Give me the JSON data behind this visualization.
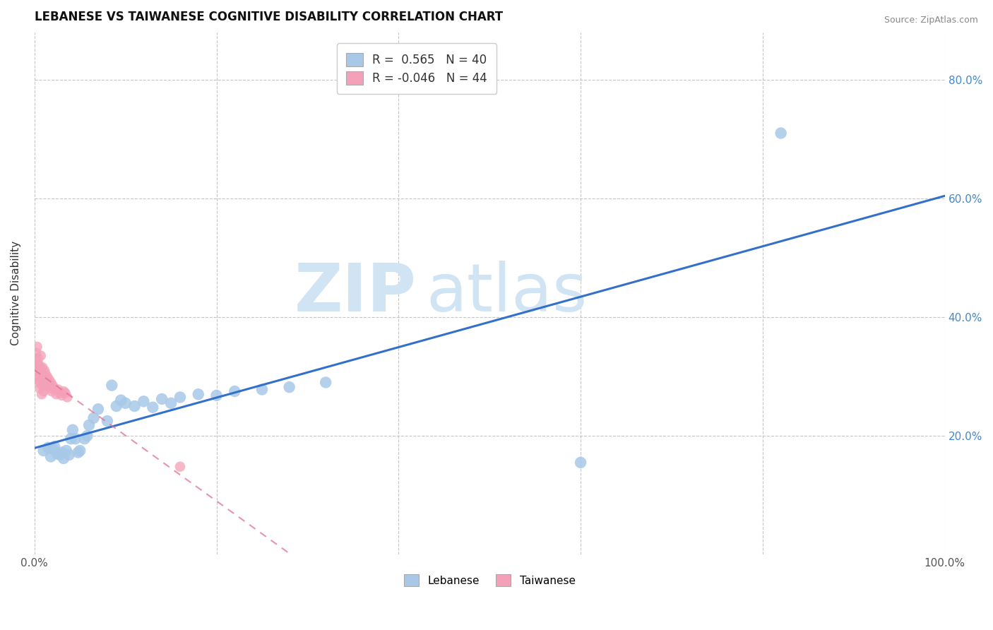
{
  "title": "LEBANESE VS TAIWANESE COGNITIVE DISABILITY CORRELATION CHART",
  "source": "Source: ZipAtlas.com",
  "ylabel": "Cognitive Disability",
  "xlim": [
    0.0,
    1.0
  ],
  "ylim": [
    0.0,
    0.88
  ],
  "xticks": [
    0.0,
    0.2,
    0.4,
    0.6,
    0.8,
    1.0
  ],
  "yticks": [
    0.2,
    0.4,
    0.6,
    0.8
  ],
  "xticklabels": [
    "0.0%",
    "",
    "",
    "",
    "",
    "100.0%"
  ],
  "yticklabels_right": [
    "20.0%",
    "40.0%",
    "60.0%",
    "80.0%"
  ],
  "legend_label_blue": "R =  0.565   N = 40",
  "legend_label_pink": "R = -0.046   N = 44",
  "blue_scatter_color": "#a8c8e8",
  "pink_scatter_color": "#f4a0b8",
  "blue_line_color": "#3370cc",
  "pink_line_color": "#e07090",
  "watermark_zip": "ZIP",
  "watermark_atlas": "atlas",
  "watermark_color": "#d0e4f4",
  "background_color": "#ffffff",
  "grid_color": "#c0c0c0",
  "title_fontsize": 12,
  "axis_label_fontsize": 11,
  "tick_fontsize": 11,
  "legend_fontsize": 12,
  "lebanese_x": [
    0.01,
    0.015,
    0.018,
    0.02,
    0.022,
    0.025,
    0.028,
    0.03,
    0.032,
    0.035,
    0.038,
    0.04,
    0.042,
    0.045,
    0.048,
    0.05,
    0.055,
    0.058,
    0.06,
    0.065,
    0.07,
    0.08,
    0.085,
    0.09,
    0.095,
    0.1,
    0.11,
    0.12,
    0.13,
    0.14,
    0.15,
    0.16,
    0.18,
    0.2,
    0.22,
    0.25,
    0.28,
    0.32,
    0.6,
    0.82
  ],
  "lebanese_y": [
    0.175,
    0.18,
    0.165,
    0.178,
    0.182,
    0.17,
    0.168,
    0.172,
    0.162,
    0.175,
    0.168,
    0.195,
    0.21,
    0.195,
    0.172,
    0.175,
    0.195,
    0.2,
    0.218,
    0.23,
    0.245,
    0.225,
    0.285,
    0.25,
    0.26,
    0.255,
    0.25,
    0.258,
    0.248,
    0.262,
    0.255,
    0.265,
    0.27,
    0.268,
    0.275,
    0.278,
    0.282,
    0.29,
    0.155,
    0.71
  ],
  "taiwanese_x": [
    0.001,
    0.002,
    0.002,
    0.003,
    0.003,
    0.004,
    0.004,
    0.004,
    0.005,
    0.005,
    0.005,
    0.006,
    0.006,
    0.007,
    0.007,
    0.007,
    0.008,
    0.008,
    0.008,
    0.009,
    0.009,
    0.01,
    0.01,
    0.011,
    0.011,
    0.012,
    0.012,
    0.013,
    0.014,
    0.015,
    0.016,
    0.017,
    0.018,
    0.019,
    0.02,
    0.022,
    0.024,
    0.026,
    0.028,
    0.03,
    0.032,
    0.034,
    0.036,
    0.16
  ],
  "taiwanese_y": [
    0.33,
    0.34,
    0.31,
    0.32,
    0.35,
    0.295,
    0.315,
    0.33,
    0.3,
    0.29,
    0.32,
    0.28,
    0.31,
    0.295,
    0.315,
    0.335,
    0.285,
    0.305,
    0.27,
    0.295,
    0.315,
    0.275,
    0.3,
    0.29,
    0.31,
    0.285,
    0.305,
    0.295,
    0.3,
    0.285,
    0.295,
    0.28,
    0.29,
    0.275,
    0.285,
    0.28,
    0.27,
    0.278,
    0.272,
    0.268,
    0.275,
    0.272,
    0.265,
    0.148
  ]
}
